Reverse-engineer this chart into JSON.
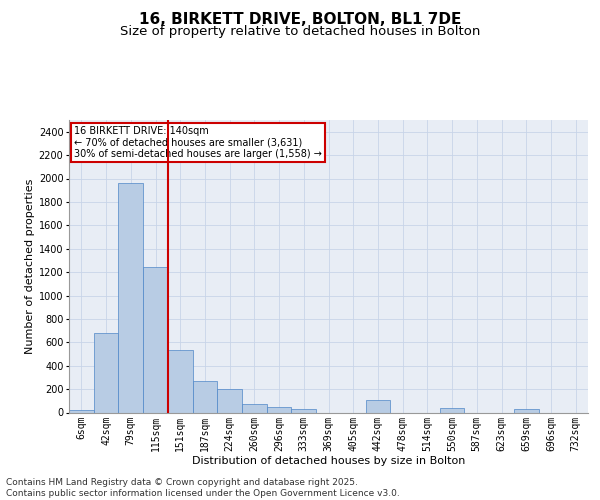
{
  "title_line1": "16, BIRKETT DRIVE, BOLTON, BL1 7DE",
  "title_line2": "Size of property relative to detached houses in Bolton",
  "xlabel": "Distribution of detached houses by size in Bolton",
  "ylabel": "Number of detached properties",
  "categories": [
    "6sqm",
    "42sqm",
    "79sqm",
    "115sqm",
    "151sqm",
    "187sqm",
    "224sqm",
    "260sqm",
    "296sqm",
    "333sqm",
    "369sqm",
    "405sqm",
    "442sqm",
    "478sqm",
    "514sqm",
    "550sqm",
    "587sqm",
    "623sqm",
    "659sqm",
    "696sqm",
    "732sqm"
  ],
  "values": [
    20,
    680,
    1960,
    1240,
    530,
    270,
    200,
    75,
    45,
    30,
    0,
    0,
    110,
    0,
    0,
    38,
    0,
    0,
    28,
    0,
    0
  ],
  "bar_color": "#b8cce4",
  "bar_edge_color": "#4e86c8",
  "vline_color": "#cc0000",
  "annotation_text": "16 BIRKETT DRIVE: 140sqm\n← 70% of detached houses are smaller (3,631)\n30% of semi-detached houses are larger (1,558) →",
  "annotation_box_color": "#ffffff",
  "annotation_box_edge": "#cc0000",
  "ylim": [
    0,
    2500
  ],
  "yticks": [
    0,
    200,
    400,
    600,
    800,
    1000,
    1200,
    1400,
    1600,
    1800,
    2000,
    2200,
    2400
  ],
  "grid_color": "#c8d4e8",
  "background_color": "#e8edf5",
  "footer_text": "Contains HM Land Registry data © Crown copyright and database right 2025.\nContains public sector information licensed under the Open Government Licence v3.0.",
  "title_fontsize": 11,
  "subtitle_fontsize": 9.5,
  "label_fontsize": 8,
  "tick_fontsize": 7,
  "footer_fontsize": 6.5
}
